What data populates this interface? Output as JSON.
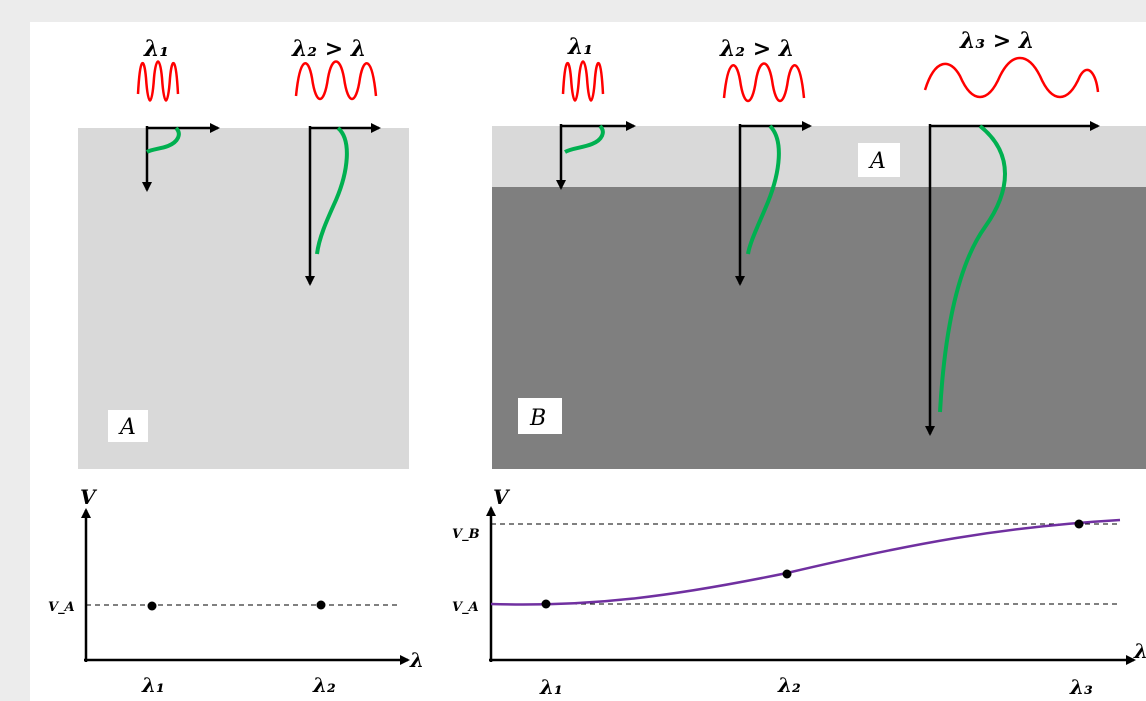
{
  "colors": {
    "background": "#ececec",
    "layer_a": "#d9d9d9",
    "layer_b": "#7f7f7f",
    "wave": "#ff0000",
    "penetration_curve": "#00b050",
    "dispersion_curve": "#7030a0",
    "axis": "#000000"
  },
  "left_panel": {
    "wave_labels": [
      "λ₁",
      "λ₂ > λ"
    ],
    "material_label": "A",
    "plot": {
      "y_axis_label": "V",
      "x_axis_label": "λ",
      "y_tick_labels": [
        "V_A"
      ],
      "x_tick_labels": [
        "λ₁",
        "λ₂"
      ]
    }
  },
  "right_panel": {
    "wave_labels": [
      "λ₁",
      "λ₂ > λ",
      "λ₃ > λ"
    ],
    "top_layer_label": "A",
    "bottom_layer_label": "B",
    "plot": {
      "y_axis_label": "V",
      "x_axis_label": "λ",
      "y_tick_labels": [
        "V_B",
        "V_A"
      ],
      "x_tick_labels": [
        "λ₁",
        "λ₂",
        "λ₃"
      ]
    }
  }
}
